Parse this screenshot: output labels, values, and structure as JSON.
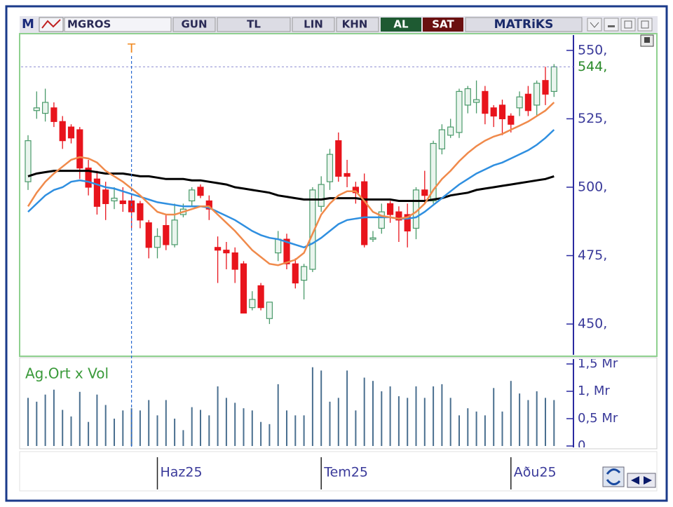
{
  "toolbar": {
    "icon": "M",
    "symbol": "MGROS",
    "period": "GUN",
    "currency": "TL",
    "scale": "LIN",
    "chart_kind": "KHN",
    "buy": "AL",
    "sell": "SAT",
    "brand": "MATRiKS"
  },
  "chart_data": {
    "type": "candlestick",
    "categories": [
      null,
      null,
      null,
      null,
      null,
      null,
      null,
      null,
      null,
      null,
      null,
      null,
      null,
      null,
      null,
      "Haz25",
      null,
      null,
      null,
      null,
      null,
      null,
      null,
      null,
      null,
      null,
      null,
      null,
      null,
      null,
      null,
      null,
      null,
      null,
      "Tem25",
      null,
      null,
      null,
      null,
      null,
      null,
      null,
      null,
      null,
      null,
      null,
      null,
      null,
      null,
      null,
      null,
      null,
      null,
      null,
      null,
      null,
      "Aðu25",
      null,
      null,
      null,
      null,
      null
    ],
    "open": [
      502,
      528,
      527,
      529,
      524,
      522,
      521,
      507,
      503,
      499,
      495,
      495,
      495,
      494,
      487,
      478,
      486,
      479,
      490,
      495,
      500,
      495,
      478,
      477,
      476,
      472,
      456,
      464,
      452,
      476,
      481,
      472,
      466,
      470,
      493,
      502,
      517,
      505,
      500,
      502,
      481,
      485,
      494,
      491,
      490,
      485,
      499,
      495,
      514,
      519,
      520,
      530,
      531,
      535,
      529,
      530,
      526,
      529,
      534,
      530,
      539,
      535
    ],
    "high": [
      519,
      535,
      536,
      531,
      526,
      523,
      522,
      510,
      506,
      502,
      500,
      500,
      497,
      495,
      488,
      485,
      490,
      494,
      494,
      500,
      501,
      497,
      482,
      480,
      478,
      473,
      462,
      465,
      458,
      484,
      483,
      474,
      472,
      500,
      504,
      514,
      520,
      510,
      502,
      505,
      484,
      494,
      495,
      493,
      494,
      500,
      506,
      517,
      523,
      525,
      536,
      537,
      539,
      537,
      530,
      532,
      527,
      535,
      537,
      539,
      544,
      545
    ],
    "low": [
      499,
      525,
      524,
      522,
      514,
      516,
      503,
      497,
      490,
      488,
      492,
      491,
      485,
      485,
      474,
      474,
      477,
      478,
      489,
      493,
      496,
      488,
      465,
      470,
      465,
      454,
      455,
      455,
      450,
      473,
      470,
      463,
      459,
      469,
      491,
      499,
      502,
      500,
      494,
      478,
      480,
      483,
      487,
      480,
      478,
      481,
      494,
      494,
      512,
      518,
      518,
      527,
      527,
      523,
      522,
      519,
      520,
      526,
      526,
      526,
      530,
      533
    ],
    "close": [
      517,
      529,
      531,
      524,
      517,
      518,
      507,
      500,
      493,
      494,
      496,
      494,
      491,
      488,
      478,
      482,
      479,
      488,
      492,
      499,
      497,
      492,
      477,
      476,
      470,
      454,
      459,
      456,
      458,
      481,
      472,
      465,
      471,
      499,
      501,
      512,
      504,
      504,
      498,
      479,
      481.5,
      491,
      490,
      488,
      484,
      499,
      497,
      516,
      521,
      522,
      535,
      536,
      532,
      527,
      526,
      525,
      523,
      533,
      528,
      538,
      534,
      544
    ],
    "up_color": "#4a9a6a",
    "down_color": "#e8141c",
    "series": [
      {
        "color": "#000000",
        "values": [
          504,
          505,
          505.5,
          506,
          506,
          506,
          506,
          506,
          505.5,
          505,
          505,
          505,
          504.5,
          504,
          504,
          503.5,
          503,
          503,
          503,
          502.5,
          502.5,
          502,
          501.5,
          501,
          500,
          499.5,
          499,
          498.5,
          498,
          497,
          496.5,
          496,
          495.5,
          495.5,
          495.5,
          496,
          496,
          496,
          496,
          495.5,
          495.5,
          495.5,
          495.5,
          495,
          495,
          495,
          495,
          495.5,
          496,
          497,
          497.5,
          498,
          499,
          499.5,
          500,
          500.5,
          501,
          501.5,
          502,
          502.5,
          503,
          504
        ]
      },
      {
        "color": "#2f8fe0",
        "values": [
          491,
          494,
          497,
          499,
          500,
          502,
          502.5,
          502,
          501,
          500,
          499.5,
          498.5,
          497.5,
          496.5,
          495.5,
          494.5,
          494,
          493.5,
          493,
          493,
          493,
          492.5,
          491,
          489.5,
          488,
          486,
          484,
          482.5,
          481.5,
          481,
          480,
          479,
          478,
          479.5,
          481.5,
          484,
          486.5,
          488,
          488.5,
          489,
          489,
          489,
          489,
          488.5,
          488.5,
          489,
          491,
          493.5,
          496,
          498.5,
          501,
          503,
          505,
          506.5,
          508,
          509,
          510.5,
          512,
          513.5,
          515.5,
          518,
          521
        ]
      },
      {
        "color": "#f08a4b",
        "values": [
          493,
          498,
          502,
          505,
          507.5,
          510,
          511,
          510.5,
          509,
          506,
          504,
          502,
          499.5,
          497,
          494,
          491,
          490,
          490,
          491,
          492,
          493,
          493,
          490,
          487,
          484,
          480.5,
          477,
          474.5,
          472,
          471.5,
          472.5,
          473.5,
          476,
          483,
          490,
          494,
          497,
          498.5,
          498.5,
          495,
          491,
          489.5,
          489,
          488.5,
          489,
          491,
          494,
          499,
          503,
          506,
          509.5,
          512.5,
          515,
          517,
          518.5,
          519.5,
          521,
          522.5,
          524,
          526,
          528,
          531
        ]
      }
    ],
    "ylim": [
      439,
      555.6
    ],
    "yticks": [
      {
        "value": 550,
        "label": "550,"
      },
      {
        "value": 525,
        "label": "525,"
      },
      {
        "value": 500,
        "label": "500,"
      },
      {
        "value": 475,
        "label": "475,"
      },
      {
        "value": 450,
        "label": "450,"
      }
    ],
    "last_value_label": "544,",
    "marker_label": "T",
    "volume": {
      "label": "Ag.Ort x Vol",
      "color": "#4a6f8f",
      "values": [
        0.88,
        0.81,
        0.94,
        1.03,
        0.66,
        0.54,
        0.99,
        0.44,
        0.94,
        0.75,
        0.5,
        0.65,
        0.69,
        0.65,
        0.84,
        0.56,
        0.84,
        0.5,
        0.29,
        0.71,
        0.66,
        0.56,
        1.09,
        0.88,
        0.79,
        0.69,
        0.65,
        0.44,
        0.4,
        1.13,
        0.65,
        0.56,
        0.56,
        1.44,
        1.38,
        0.81,
        0.88,
        1.38,
        0.65,
        1.25,
        1.19,
        1,
        1.09,
        0.91,
        0.88,
        1.09,
        0.88,
        1.09,
        1.13,
        0.88,
        0.56,
        0.69,
        0.63,
        0.56,
        1.06,
        0.63,
        1.19,
        0.96,
        0.84,
        1,
        0.88,
        0.84
      ],
      "ylim": [
        0,
        1.59
      ],
      "yticks": [
        {
          "value": 1.5,
          "label": "1,5 Mr"
        },
        {
          "value": 1,
          "label": "1, Mr"
        },
        {
          "value": 0.5,
          "label": "0,5 Mr"
        },
        0
      ]
    }
  }
}
